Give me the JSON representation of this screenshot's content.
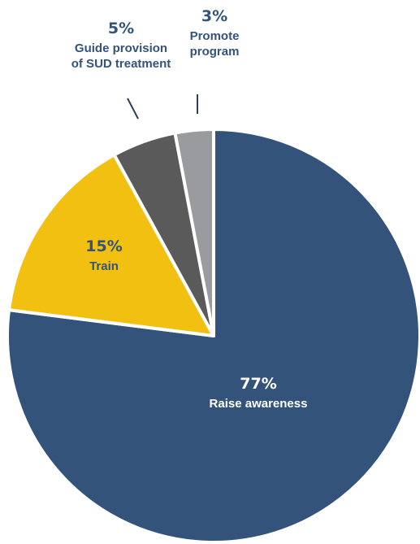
{
  "chart_data": {
    "type": "pie",
    "slices": [
      {
        "percent_label": "77%",
        "label_lines": [
          "Raise awareness"
        ],
        "value": 77,
        "color": "#33537a"
      },
      {
        "percent_label": "15%",
        "label_lines": [
          "Train"
        ],
        "value": 15,
        "color": "#f2c010"
      },
      {
        "percent_label": "5%",
        "label_lines": [
          "Guide provision",
          "of SUD treatment"
        ],
        "value": 5,
        "color": "#5a5a5a"
      },
      {
        "percent_label": "3%",
        "label_lines": [
          "Promote",
          "program"
        ],
        "value": 3,
        "color": "#9a9b9f"
      }
    ],
    "start": "12 o'clock",
    "direction": "clockwise"
  }
}
